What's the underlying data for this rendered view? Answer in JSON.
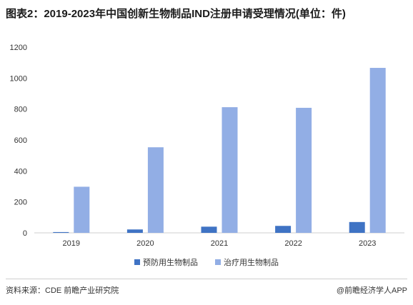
{
  "title": "图表2：2019-2023年中国创新生物制品IND注册申请受理情况(单位：件)",
  "footer": {
    "source": "资料来源：CDE 前瞻产业研究院",
    "credit": "@前瞻经济学人APP"
  },
  "colors": {
    "series1": "#3f73c4",
    "series2": "#92aee5"
  },
  "chart_data": {
    "type": "bar",
    "categories": [
      "2019",
      "2020",
      "2021",
      "2022",
      "2023"
    ],
    "series": [
      {
        "name": "预防用生物制品",
        "values": [
          5,
          22,
          40,
          45,
          70
        ]
      },
      {
        "name": "治疗用生物制品",
        "values": [
          298,
          553,
          812,
          808,
          1066
        ]
      }
    ],
    "y_ticks": [
      "0",
      "200",
      "400",
      "600",
      "800",
      "1000",
      "1200"
    ],
    "ylim": [
      0,
      1200
    ],
    "grid": false,
    "legend_position": "bottom"
  }
}
